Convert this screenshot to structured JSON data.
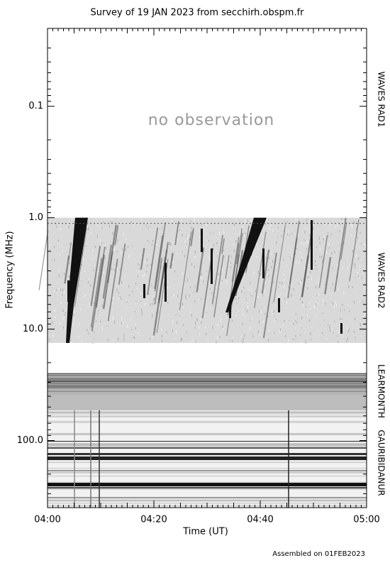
{
  "chart_data": {
    "type": "spectrogram",
    "title": "Survey of 19 JAN 2023 from secchirh.obspm.fr",
    "x_label": "Time (UT)",
    "y_label": "Frequency (MHz)",
    "xticks": [
      "04:00",
      "04:20",
      "04:40",
      "05:00"
    ],
    "ylim": [
      0.02,
      400
    ],
    "log_y": true,
    "yticks": [
      0.1,
      {
        "value": 1.0,
        "label": "1.0"
      },
      {
        "value": 10.0,
        "label": "10.0"
      },
      {
        "value": 100.0,
        "label": "100.0"
      }
    ],
    "panels": [
      "WAVES RAD1",
      "WAVES RAD2",
      "LEARMONTH",
      "GAURIBIDANUR"
    ],
    "annotation": "no observation",
    "footer": "Assembled on 01FEB2023"
  }
}
